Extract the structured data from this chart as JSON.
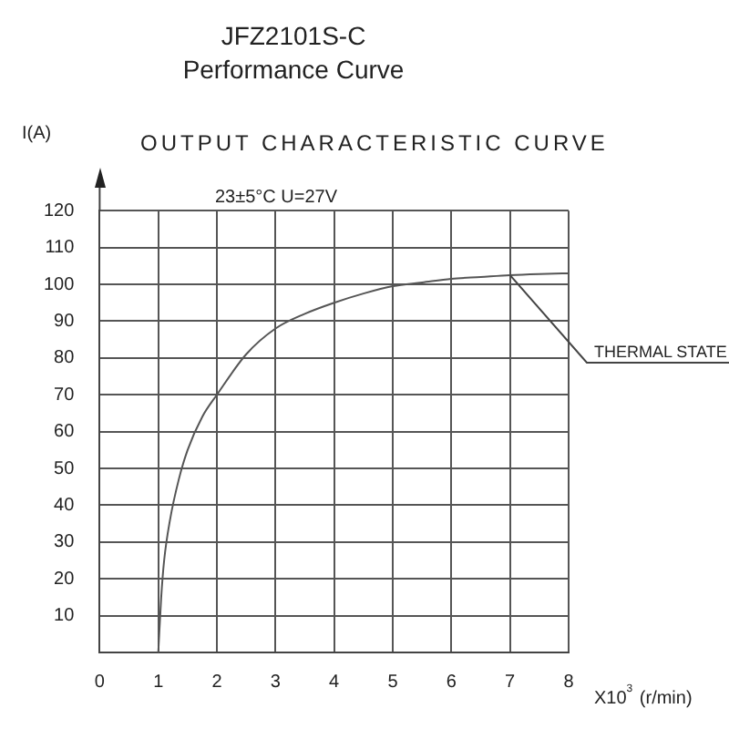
{
  "chart_data": {
    "type": "line",
    "title": "JFZ2101S-C",
    "subtitle": "Performance Curve",
    "xlabel": "X10$^{3}$ (r/min)",
    "ylabel": "I(A)",
    "annotations": [
      "OUTPUT CHARACTERISTIC CURVE",
      "23±5°C U=27V",
      {
        "text": "THERMAL STATE",
        "x": 7,
        "y": 102.5
      }
    ],
    "x": [
      1,
      1.05,
      1.1,
      1.2,
      1.35,
      1.5,
      1.75,
      2,
      2.5,
      3,
      3.5,
      4,
      4.5,
      5,
      5.5,
      6,
      6.5,
      7,
      7.5,
      8
    ],
    "series": [
      {
        "color": "#555555",
        "values": [
          0,
          15,
          25,
          36,
          47,
          55,
          64,
          70,
          81,
          88,
          92,
          95,
          97.5,
          99.5,
          100.5,
          101.5,
          102,
          102.5,
          102.8,
          103
        ]
      }
    ],
    "xlim": [
      0,
      8
    ],
    "xticks": [
      0,
      1,
      2,
      3,
      4,
      5,
      6,
      7,
      8
    ],
    "ylim": [
      0,
      120
    ],
    "yticks": [
      {
        "value": 0,
        "label": null
      },
      10,
      20,
      30,
      40,
      50,
      60,
      70,
      80,
      90,
      100,
      110,
      120
    ],
    "grid": true,
    "legend": false,
    "marker": "none",
    "line_style": "solid"
  }
}
